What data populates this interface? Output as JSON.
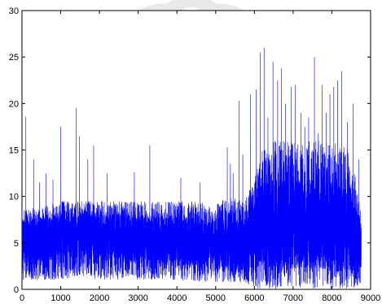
{
  "chart_data": {
    "type": "line",
    "title": "",
    "xlabel": "",
    "ylabel": "",
    "xlim": [
      0,
      9000
    ],
    "ylim": [
      0,
      30
    ],
    "xticks": [
      0,
      1000,
      2000,
      3000,
      4000,
      5000,
      6000,
      7000,
      8000,
      9000
    ],
    "yticks": [
      0,
      5,
      10,
      15,
      20,
      25,
      30
    ],
    "xtick_labels": [
      "0",
      "1000",
      "2000",
      "3000",
      "4000",
      "5000",
      "6000",
      "7000",
      "8000",
      "9000"
    ],
    "ytick_labels": [
      "0",
      "5",
      "10",
      "15",
      "20",
      "25",
      "30"
    ],
    "grid": false,
    "legend": "none",
    "n_points": 8760,
    "line_color": "#0000ff",
    "series": [
      {
        "values_envelope": {
          "x": [
            0,
            500,
            1000,
            1500,
            2000,
            2500,
            3000,
            3500,
            4000,
            4500,
            5000,
            5500,
            5800,
            6000,
            6200,
            6500,
            7000,
            7500,
            8000,
            8500,
            8760
          ],
          "typical_low": [
            1,
            1,
            1,
            1.5,
            1,
            1,
            1,
            1,
            1,
            0.8,
            0.8,
            0.8,
            0.5,
            0,
            0,
            0,
            0,
            0,
            0,
            0,
            0.5
          ],
          "typical_high": [
            8.5,
            9,
            9.5,
            9.5,
            9.5,
            9.5,
            9.5,
            9.5,
            9.5,
            9.5,
            9.5,
            10,
            10,
            12,
            15,
            16,
            16,
            16,
            16,
            15,
            8
          ],
          "typical_mid": [
            5,
            5.5,
            5.8,
            6,
            6,
            5.8,
            5.5,
            5.5,
            5.2,
            5,
            4.8,
            4.5,
            5,
            6,
            7,
            7,
            7,
            7,
            7,
            6,
            4.5
          ]
        },
        "peaks": {
          "x": [
            100,
            300,
            450,
            620,
            800,
            1000,
            1400,
            1480,
            1700,
            1850,
            2200,
            2900,
            3300,
            4100,
            4600,
            5300,
            5380,
            5450,
            5600,
            5700,
            5900,
            6050,
            6150,
            6250,
            6350,
            6480,
            6600,
            6700,
            6800,
            6950,
            7050,
            7200,
            7300,
            7400,
            7550,
            7650,
            7750,
            7850,
            7950,
            8050,
            8150,
            8250,
            8400,
            8550,
            8700
          ],
          "y": [
            18.6,
            14,
            11.5,
            12.5,
            11.8,
            17.5,
            19.5,
            16.5,
            14,
            15.5,
            12.5,
            12.6,
            15.5,
            12,
            11.5,
            15.3,
            13.5,
            12.5,
            20.3,
            14.5,
            21,
            21.5,
            25.5,
            26,
            18.5,
            24.5,
            22.5,
            23.8,
            20,
            21.8,
            22,
            19,
            17.5,
            18.5,
            25,
            16.8,
            22,
            19,
            21,
            21.8,
            22.5,
            23.5,
            18,
            20,
            14
          ]
        }
      }
    ]
  }
}
